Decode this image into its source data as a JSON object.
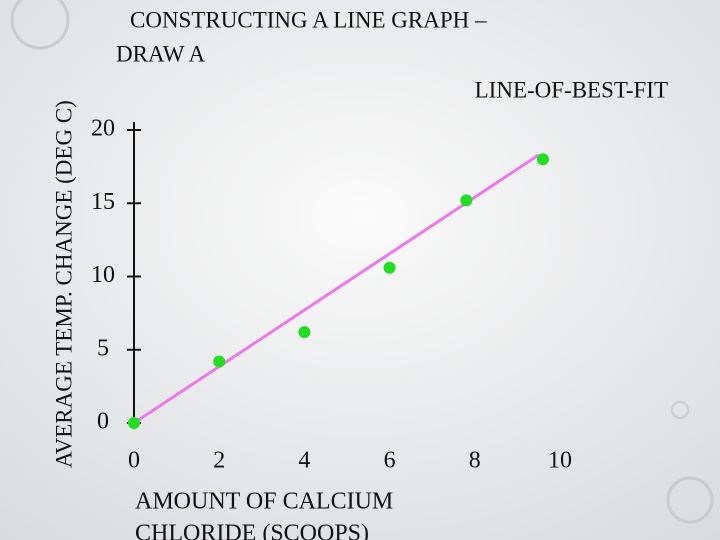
{
  "chart_data": {
    "type": "scatter",
    "title": [
      "CONSTRUCTING A LINE GRAPH –",
      "DRAW A",
      "LINE-OF-BEST-FIT"
    ],
    "y_label": "AVERAGE TEMP. CHANGE (DEG C)",
    "x_label": [
      "AMOUNT OF CALCIUM",
      "CHLORIDE (SCOOPS)"
    ],
    "x": [
      0,
      2,
      4,
      6,
      7.8,
      9.6
    ],
    "values": [
      0,
      4.2,
      6.2,
      10.6,
      15.2,
      18
    ],
    "color": "#22dd22",
    "fit_line": {
      "x": [
        0,
        9.5
      ],
      "values": [
        0,
        18.3
      ],
      "color": "#ee77ee"
    },
    "xlim": [
      0,
      10
    ],
    "xticks": [
      0,
      2,
      4,
      6,
      8,
      10
    ],
    "ylim": [
      0,
      20
    ],
    "yticks": [
      0,
      5,
      10,
      15,
      20
    ]
  }
}
